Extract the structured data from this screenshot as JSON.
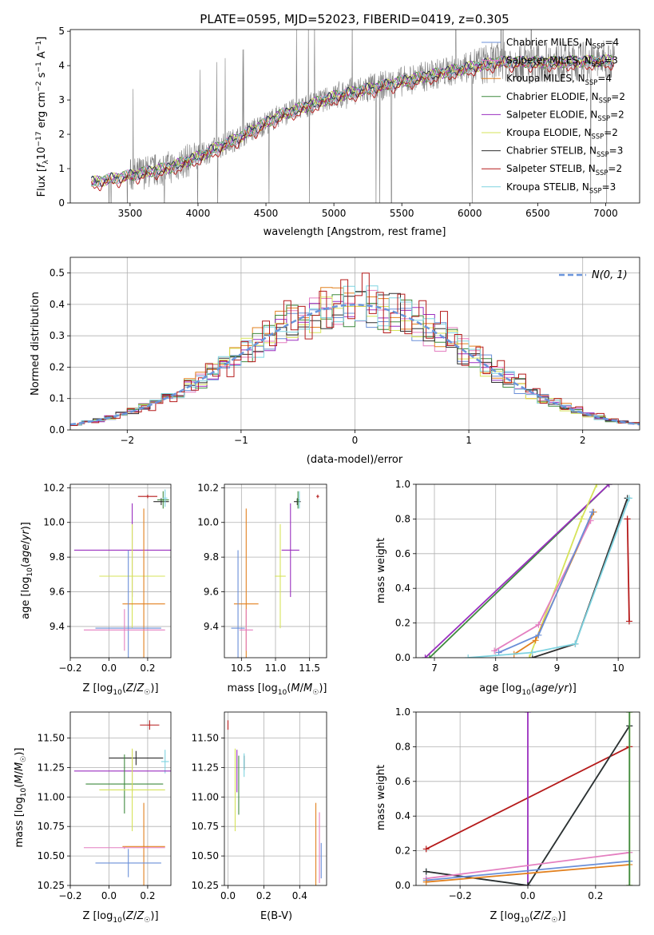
{
  "chart_data": [
    {
      "id": "spectrum",
      "type": "line",
      "title": "PLATE=0595, MJD=52023, FIBERID=0419, z=0.305",
      "xlabel": "wavelength [Angstrom, rest frame]",
      "ylabel": "Flux [f_λ 10^-17 erg cm^-2 s^-1 A^-1]",
      "xlim": [
        3060,
        7250
      ],
      "ylim": [
        0,
        5.05
      ],
      "xticks": [
        3500,
        4000,
        4500,
        5000,
        5500,
        6000,
        6500,
        7000
      ],
      "yticks": [
        0,
        1,
        2,
        3,
        4,
        5
      ],
      "data_color": "#808080",
      "data_range": [
        3215,
        7065
      ],
      "continuum": {
        "x": [
          3215,
          3500,
          3800,
          4000,
          4300,
          4600,
          5000,
          5400,
          5800,
          6200,
          6600,
          7060
        ],
        "y": [
          0.6,
          0.8,
          1.05,
          1.35,
          1.9,
          2.55,
          3.1,
          3.45,
          3.8,
          4.1,
          4.1,
          4.15
        ]
      },
      "legend_loc": "upper right",
      "legend": [
        {
          "label": "Chabrier MILES, N",
          "sub": "SSP",
          "n": "=4",
          "color": "#6a8fd8"
        },
        {
          "label": "Salpeter MILES, N",
          "sub": "SSP",
          "n": "=3",
          "color": "#e47fc0"
        },
        {
          "label": "Kroupa MILES, N",
          "sub": "SSP",
          "n": "=4",
          "color": "#e2811f"
        },
        {
          "label": "Chabrier ELODIE, N",
          "sub": "SSP",
          "n": "=2",
          "color": "#3f8a3f"
        },
        {
          "label": "Salpeter ELODIE, N",
          "sub": "SSP",
          "n": "=2",
          "color": "#9a2fbf"
        },
        {
          "label": "Kroupa ELODIE, N",
          "sub": "SSP",
          "n": "=2",
          "color": "#d6e35a"
        },
        {
          "label": "Chabrier STELIB, N",
          "sub": "SSP",
          "n": "=3",
          "color": "#2f2f2f"
        },
        {
          "label": "Salpeter STELIB, N",
          "sub": "SSP",
          "n": "=2",
          "color": "#b51a1a"
        },
        {
          "label": "Kroupa STELIB, N",
          "sub": "SSP",
          "n": "=3",
          "color": "#7fd3e0"
        }
      ]
    },
    {
      "id": "residuals",
      "type": "histogram",
      "xlabel": "(data-model)/error",
      "ylabel": "Normed distribution",
      "xlim": [
        -2.5,
        2.5
      ],
      "ylim": [
        0,
        0.55
      ],
      "xticks": [
        -2,
        -1,
        0,
        1,
        2
      ],
      "yticks": [
        0.0,
        0.1,
        0.2,
        0.3,
        0.4,
        0.5
      ],
      "bin_width": 0.1,
      "legend": [
        {
          "label": "N(0, 1)",
          "color": "#6a95dc"
        }
      ],
      "red_highlight": [
        0.02,
        0.02,
        0.03,
        0.03,
        0.04,
        0.04,
        0.05,
        0.04,
        0.05,
        0.04,
        0.04,
        0.04,
        0.04,
        0.05,
        0.09,
        0.1,
        0.13,
        0.11,
        0.15,
        0.13,
        0.18,
        0.19,
        0.17,
        0.18,
        0.17,
        0.21,
        0.25,
        0.3,
        0.29,
        0.26,
        0.26,
        0.29,
        0.33,
        0.28,
        0.32,
        0.29,
        0.36,
        0.33,
        0.4,
        0.38,
        0.41,
        0.38,
        0.43,
        0.4,
        0.39,
        0.38,
        0.39,
        0.4,
        0.42,
        0.41,
        0.34,
        0.35,
        0.41,
        0.38,
        0.44,
        0.37,
        0.4,
        0.34,
        0.32,
        0.26,
        0.27,
        0.25,
        0.24,
        0.27,
        0.24,
        0.21,
        0.2,
        0.19,
        0.15,
        0.13,
        0.12,
        0.1,
        0.09,
        0.08,
        0.07,
        0.05,
        0.05,
        0.04,
        0.04,
        0.03
      ]
    },
    {
      "id": "age_vs_Z",
      "type": "scatter",
      "xlabel": "Z [log10(Z/Z☉)]",
      "ylabel": "age [log10(age/yr)]",
      "xlim": [
        -0.2,
        0.32
      ],
      "ylim": [
        9.22,
        10.22
      ],
      "xticks": [
        -0.2,
        0.0,
        0.2
      ],
      "yticks": [
        9.4,
        9.6,
        9.8,
        10.0,
        10.2
      ],
      "points": [
        {
          "x": 0.2,
          "y": 10.15,
          "xerr": 0.05,
          "yerr": 0.01,
          "color": "#b51a1a"
        },
        {
          "x": 0.27,
          "y": 10.12,
          "xerr": 0.04,
          "yerr": 0.02,
          "color": "#2f2f2f"
        },
        {
          "x": 0.28,
          "y": 10.13,
          "xerr": 0.03,
          "yerr": 0.05,
          "color": "#3f8a3f"
        },
        {
          "x": 0.29,
          "y": 10.14,
          "xerr": 0.012,
          "yerr": 0.05,
          "color": "#7fd3e0"
        },
        {
          "x": 0.12,
          "y": 9.84,
          "xerr": 0.3,
          "yerr": 0.27,
          "color": "#9a2fbf"
        },
        {
          "x": 0.12,
          "y": 9.69,
          "xerr": 0.17,
          "yerr": 0.3,
          "color": "#d6e35a"
        },
        {
          "x": 0.18,
          "y": 9.53,
          "xerr": 0.11,
          "yerr": 0.55,
          "color": "#e2811f"
        },
        {
          "x": 0.1,
          "y": 9.39,
          "xerr": 0.17,
          "yerr": 0.45,
          "color": "#6a8fd8"
        },
        {
          "x": 0.08,
          "y": 9.38,
          "xerr": 0.21,
          "yerr": 0.12,
          "color": "#e47fc0"
        }
      ]
    },
    {
      "id": "age_vs_mass",
      "type": "scatter",
      "xlabel": "mass [log10(M/M☉)]",
      "ylabel": "",
      "xlim": [
        10.25,
        11.75
      ],
      "ylim": [
        9.22,
        10.22
      ],
      "xticks": [
        10.5,
        11.0,
        11.5
      ],
      "yticks": [
        9.4,
        9.6,
        9.8,
        10.0,
        10.2
      ],
      "points": [
        {
          "x": 11.62,
          "y": 10.15,
          "xerr": 0.02,
          "yerr": 0.01,
          "color": "#b51a1a"
        },
        {
          "x": 11.32,
          "y": 10.12,
          "xerr": 0.05,
          "yerr": 0.02,
          "color": "#2f2f2f"
        },
        {
          "x": 11.33,
          "y": 10.13,
          "xerr": 0.02,
          "yerr": 0.05,
          "color": "#3f8a3f"
        },
        {
          "x": 11.35,
          "y": 10.13,
          "xerr": 0.01,
          "yerr": 0.05,
          "color": "#7fd3e0"
        },
        {
          "x": 11.22,
          "y": 9.84,
          "xerr": 0.13,
          "yerr": 0.27,
          "color": "#9a2fbf"
        },
        {
          "x": 11.07,
          "y": 9.69,
          "xerr": 0.08,
          "yerr": 0.3,
          "color": "#d6e35a"
        },
        {
          "x": 10.57,
          "y": 9.53,
          "xerr": 0.18,
          "yerr": 0.55,
          "color": "#e2811f"
        },
        {
          "x": 10.45,
          "y": 9.39,
          "xerr": 0.1,
          "yerr": 0.45,
          "color": "#6a8fd8"
        },
        {
          "x": 10.57,
          "y": 9.38,
          "xerr": 0.1,
          "yerr": 0.12,
          "color": "#e47fc0"
        }
      ]
    },
    {
      "id": "weight_vs_age",
      "type": "line",
      "xlabel": "age [log10(age/yr)]",
      "ylabel": "mass weight",
      "xlim": [
        6.7,
        10.35
      ],
      "ylim": [
        0,
        1
      ],
      "xticks": [
        7,
        8,
        9,
        10
      ],
      "yticks": [
        0.0,
        0.2,
        0.4,
        0.6,
        0.8,
        1.0
      ],
      "series": [
        {
          "color": "#3f8a3f",
          "x": [
            6.92,
            9.85
          ],
          "y": [
            0.0,
            1.0
          ]
        },
        {
          "color": "#9a2fbf",
          "x": [
            6.85,
            9.85
          ],
          "y": [
            0.0,
            1.0
          ]
        },
        {
          "color": "#d6e35a",
          "x": [
            8.55,
            9.4,
            9.65
          ],
          "y": [
            0.0,
            0.8,
            1.0
          ]
        },
        {
          "color": "#e2811f",
          "x": [
            8.3,
            8.65,
            9.6
          ],
          "y": [
            0.02,
            0.1,
            0.84
          ]
        },
        {
          "color": "#e47fc0",
          "x": [
            7.98,
            8.7,
            9.55
          ],
          "y": [
            0.04,
            0.19,
            0.79
          ]
        },
        {
          "color": "#6a8fd8",
          "x": [
            8.05,
            8.7,
            9.58
          ],
          "y": [
            0.03,
            0.13,
            0.84
          ]
        },
        {
          "color": "#2f2f2f",
          "x": [
            8.6,
            9.3,
            10.15
          ],
          "y": [
            0.0,
            0.08,
            0.92
          ]
        },
        {
          "color": "#7fd3e0",
          "x": [
            7.55,
            8.6,
            9.3,
            10.18
          ],
          "y": [
            0.0,
            0.03,
            0.08,
            0.92
          ]
        },
        {
          "color": "#b51a1a",
          "x": [
            10.15,
            10.18
          ],
          "y": [
            0.8,
            0.21
          ]
        }
      ]
    },
    {
      "id": "mass_vs_Z",
      "type": "scatter",
      "xlabel": "Z [log10(Z/Z☉)]",
      "ylabel": "mass [log10(M/M☉)]",
      "xlim": [
        -0.2,
        0.32
      ],
      "ylim": [
        10.25,
        11.72
      ],
      "xticks": [
        -0.2,
        0.0,
        0.2
      ],
      "yticks": [
        10.25,
        10.5,
        10.75,
        11.0,
        11.25,
        11.5
      ],
      "points": [
        {
          "x": 0.21,
          "y": 11.61,
          "xerr": 0.05,
          "yerr": 0.04,
          "color": "#b51a1a"
        },
        {
          "x": 0.14,
          "y": 11.33,
          "xerr": 0.14,
          "yerr": 0.06,
          "color": "#2f2f2f"
        },
        {
          "x": 0.29,
          "y": 11.3,
          "xerr": 0.02,
          "yerr": 0.1,
          "color": "#7fd3e0"
        },
        {
          "x": 0.12,
          "y": 11.22,
          "xerr": 0.3,
          "yerr": 0.18,
          "color": "#9a2fbf"
        },
        {
          "x": 0.08,
          "y": 11.11,
          "xerr": 0.2,
          "yerr": 0.25,
          "color": "#3f8a3f"
        },
        {
          "x": 0.12,
          "y": 11.06,
          "xerr": 0.17,
          "yerr": 0.35,
          "color": "#d6e35a"
        },
        {
          "x": 0.18,
          "y": 10.58,
          "xerr": 0.11,
          "yerr": 0.37,
          "color": "#e2811f"
        },
        {
          "x": 0.08,
          "y": 10.57,
          "xerr": 0.21,
          "yerr": 0.01,
          "color": "#e47fc0"
        },
        {
          "x": 0.1,
          "y": 10.44,
          "xerr": 0.17,
          "yerr": 0.12,
          "color": "#6a8fd8"
        }
      ]
    },
    {
      "id": "mass_vs_ebv",
      "type": "scatter",
      "xlabel": "E(B-V)",
      "ylabel": "",
      "xlim": [
        -0.02,
        0.55
      ],
      "ylim": [
        10.25,
        11.72
      ],
      "xticks": [
        0.0,
        0.2,
        0.4
      ],
      "yticks": [
        10.25,
        10.5,
        10.75,
        11.0,
        11.25,
        11.5
      ],
      "points": [
        {
          "x": 0.0,
          "y": 11.61,
          "xerr": 0.0,
          "yerr": 0.04,
          "color": "#b51a1a"
        },
        {
          "x": 0.09,
          "y": 11.29,
          "xerr": 0.0,
          "yerr": 0.06,
          "color": "#2f2f2f"
        },
        {
          "x": 0.09,
          "y": 11.27,
          "xerr": 0.0,
          "yerr": 0.1,
          "color": "#7fd3e0"
        },
        {
          "x": 0.05,
          "y": 11.22,
          "xerr": 0.0,
          "yerr": 0.18,
          "color": "#9a2fbf"
        },
        {
          "x": 0.06,
          "y": 11.1,
          "xerr": 0.0,
          "yerr": 0.25,
          "color": "#3f8a3f"
        },
        {
          "x": 0.04,
          "y": 11.06,
          "xerr": 0.0,
          "yerr": 0.35,
          "color": "#d6e35a"
        },
        {
          "x": 0.49,
          "y": 10.58,
          "xerr": 0.0,
          "yerr": 0.37,
          "color": "#e2811f"
        },
        {
          "x": 0.51,
          "y": 10.57,
          "xerr": 0.0,
          "yerr": 0.3,
          "color": "#e47fc0"
        },
        {
          "x": 0.52,
          "y": 10.46,
          "xerr": 0.0,
          "yerr": 0.15,
          "color": "#6a8fd8"
        }
      ]
    },
    {
      "id": "weight_vs_Z",
      "type": "line",
      "xlabel": "Z [log10(Z/Z☉)]",
      "ylabel": "mass weight",
      "xlim": [
        -0.33,
        0.33
      ],
      "ylim": [
        0,
        1
      ],
      "xticks": [
        -0.2,
        0.0,
        0.2
      ],
      "yticks": [
        0.0,
        0.2,
        0.4,
        0.6,
        0.8,
        1.0
      ],
      "series": [
        {
          "color": "#b51a1a",
          "x": [
            -0.3,
            0.3
          ],
          "y": [
            0.21,
            0.8
          ]
        },
        {
          "color": "#9a2fbf",
          "x": [
            0.0,
            0.0
          ],
          "y": [
            0.0,
            1.0
          ]
        },
        {
          "color": "#7fd3e0",
          "x": [
            -0.3,
            0.0,
            0.3
          ],
          "y": [
            0.08,
            0.0,
            0.92
          ]
        },
        {
          "color": "#2f2f2f",
          "x": [
            -0.3,
            0.0,
            0.3
          ],
          "y": [
            0.08,
            0.0,
            0.92
          ]
        },
        {
          "color": "#e47fc0",
          "x": [
            -0.3,
            0.3
          ],
          "y": [
            0.04,
            0.19
          ]
        },
        {
          "color": "#6a8fd8",
          "x": [
            -0.3,
            0.3
          ],
          "y": [
            0.03,
            0.14
          ]
        },
        {
          "color": "#e2811f",
          "x": [
            -0.3,
            0.3
          ],
          "y": [
            0.02,
            0.12
          ]
        },
        {
          "color": "#d6e35a",
          "x": [
            0.3,
            0.3
          ],
          "y": [
            0.0,
            1.0
          ]
        },
        {
          "color": "#3f8a3f",
          "x": [
            0.3,
            0.3
          ],
          "y": [
            0.0,
            1.0
          ]
        }
      ]
    }
  ]
}
